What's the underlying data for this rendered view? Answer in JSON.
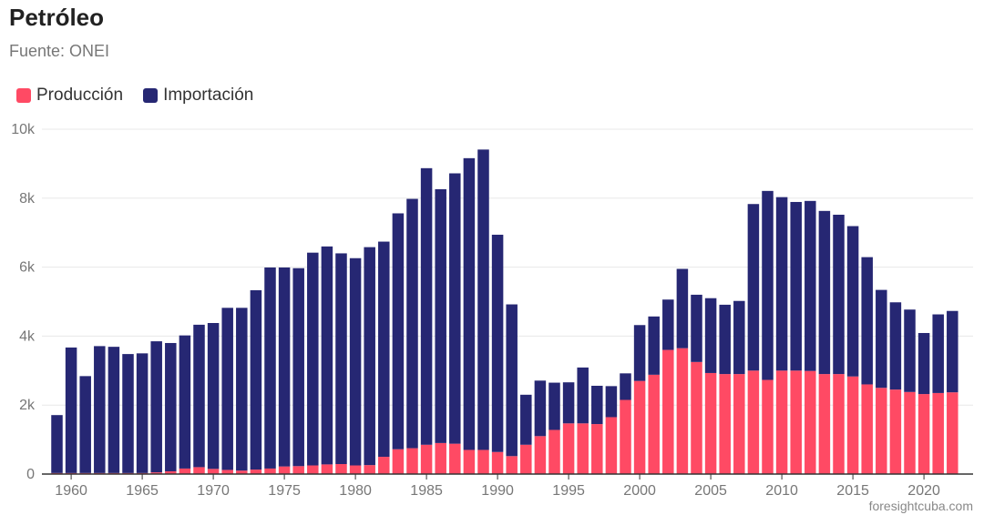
{
  "title": "Petróleo",
  "subtitle": "Fuente: ONEI",
  "footer": "foresightcuba.com",
  "colors": {
    "production": "#ff4a64",
    "imports": "#262773",
    "grid": "#e8e8e8",
    "axis": "#333333"
  },
  "chart_data": {
    "type": "bar",
    "stacked": true,
    "x": [
      1959,
      1960,
      1961,
      1962,
      1963,
      1964,
      1965,
      1966,
      1967,
      1968,
      1969,
      1970,
      1971,
      1972,
      1973,
      1974,
      1975,
      1976,
      1977,
      1978,
      1979,
      1980,
      1981,
      1982,
      1983,
      1984,
      1985,
      1986,
      1987,
      1988,
      1989,
      1990,
      1991,
      1992,
      1993,
      1994,
      1995,
      1996,
      1997,
      1998,
      1999,
      2000,
      2001,
      2002,
      2003,
      2004,
      2005,
      2006,
      2007,
      2008,
      2009,
      2010,
      2011,
      2012,
      2013,
      2014,
      2015,
      2016,
      2017,
      2018,
      2019,
      2020,
      2021,
      2022
    ],
    "series": [
      {
        "name": "Producción",
        "values": [
          30,
          30,
          30,
          30,
          30,
          30,
          30,
          50,
          80,
          160,
          200,
          150,
          120,
          100,
          130,
          160,
          220,
          230,
          250,
          280,
          290,
          250,
          260,
          500,
          720,
          750,
          850,
          900,
          880,
          700,
          700,
          640,
          520,
          850,
          1100,
          1280,
          1470,
          1470,
          1450,
          1650,
          2150,
          2700,
          2880,
          3600,
          3650,
          3250,
          2930,
          2900,
          2900,
          3000,
          2730,
          3000,
          3000,
          2990,
          2900,
          2900,
          2830,
          2600,
          2500,
          2450,
          2380,
          2320,
          2350,
          2370
        ]
      },
      {
        "name": "Importación",
        "values": [
          1680,
          3640,
          2810,
          3680,
          3660,
          3450,
          3470,
          3800,
          3720,
          3860,
          4130,
          4230,
          4700,
          4720,
          5200,
          5830,
          5770,
          5740,
          6170,
          6320,
          6110,
          6010,
          6320,
          6240,
          6840,
          7230,
          8020,
          7360,
          7840,
          8460,
          8710,
          6300,
          4400,
          1450,
          1610,
          1370,
          1190,
          1620,
          1110,
          900,
          770,
          1620,
          1690,
          1460,
          2300,
          1950,
          2170,
          2010,
          2120,
          4830,
          5480,
          5030,
          4890,
          4930,
          4730,
          4620,
          4360,
          3690,
          2840,
          2530,
          2390,
          1770,
          2280,
          2360
        ]
      }
    ],
    "ylim": [
      0,
      10000
    ],
    "yticks": [
      0,
      2000,
      4000,
      6000,
      8000,
      10000
    ],
    "ytick_labels": [
      "0",
      "2k",
      "4k",
      "6k",
      "8k",
      "10k"
    ],
    "xticks": [
      1960,
      1965,
      1970,
      1975,
      1980,
      1985,
      1990,
      1995,
      2000,
      2005,
      2010,
      2015,
      2020
    ],
    "grid": true,
    "legend_position": "top-left"
  }
}
